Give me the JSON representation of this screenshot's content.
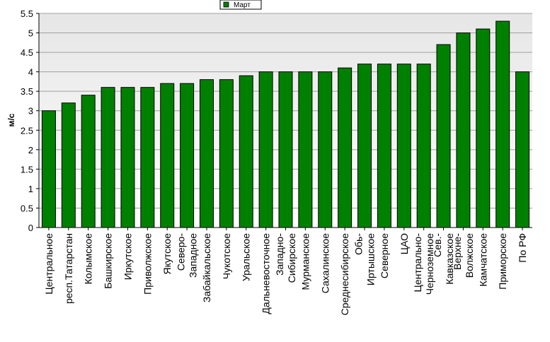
{
  "chart_data": {
    "type": "bar",
    "title": "",
    "xlabel": "",
    "ylabel": "м/с",
    "ylim": [
      0,
      5.5
    ],
    "yticks": [
      "0",
      "0.5",
      "1",
      "1.5",
      "2",
      "2.5",
      "3",
      "3.5",
      "4",
      "4.5",
      "5",
      "5.5"
    ],
    "grid": true,
    "legend_position": "top-center",
    "categories": [
      [
        "Центральное"
      ],
      [
        "респ.Татарстан"
      ],
      [
        "Колымское"
      ],
      [
        "Башкирское"
      ],
      [
        "Иркутское"
      ],
      [
        "Приволжское"
      ],
      [
        "Якутское"
      ],
      [
        "Северо-",
        "Западное"
      ],
      [
        "Забайкальское"
      ],
      [
        "Чукотское"
      ],
      [
        "Уральское"
      ],
      [
        "Дальневосточное"
      ],
      [
        "Западно-",
        "Сибирское"
      ],
      [
        "Мурманское"
      ],
      [
        "Сахалинское"
      ],
      [
        "Среднесибирское"
      ],
      [
        "Обь-",
        "Иртышское"
      ],
      [
        "Северное"
      ],
      [
        "ЦАО"
      ],
      [
        "Центрально-",
        "Черноземное"
      ],
      [
        "Сев.-",
        "Кавказское"
      ],
      [
        "Верхне-",
        "Волжское"
      ],
      [
        "Камчатское"
      ],
      [
        "Приморское"
      ],
      [
        "По РФ"
      ]
    ],
    "series": [
      {
        "name": "Март",
        "color": "#008000",
        "values": [
          3.0,
          3.2,
          3.4,
          3.6,
          3.6,
          3.6,
          3.7,
          3.7,
          3.8,
          3.8,
          3.9,
          4.0,
          4.0,
          4.0,
          4.0,
          4.1,
          4.2,
          4.2,
          4.2,
          4.2,
          4.7,
          5.0,
          5.1,
          5.3,
          4.0
        ]
      }
    ]
  }
}
